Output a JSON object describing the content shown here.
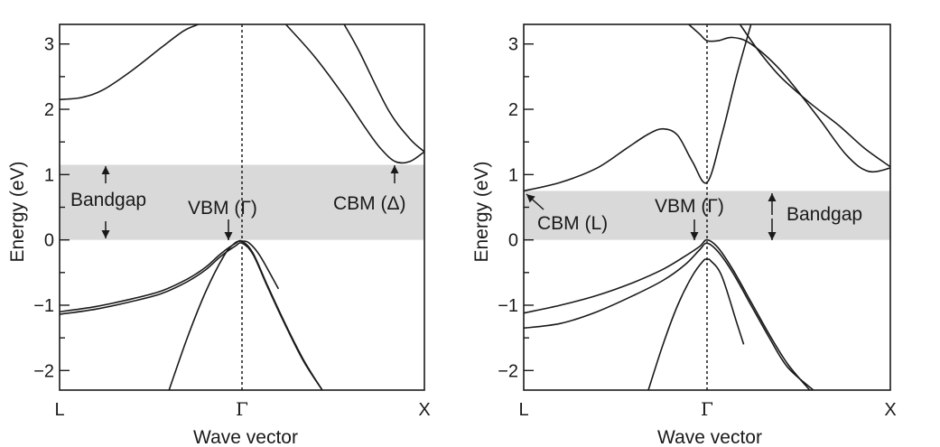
{
  "chart_data": [
    {
      "type": "line",
      "title": "",
      "xlabel": "Wave vector",
      "ylabel": "Energy (eV)",
      "xlim": [
        0,
        1
      ],
      "ylim": [
        -2.3,
        3.3
      ],
      "yticks": [
        -2,
        -1,
        0,
        1,
        2,
        3
      ],
      "ytick_labels": [
        "−2",
        "−1",
        "0",
        "1",
        "2",
        "3"
      ],
      "xticks": [
        0,
        0.5,
        1
      ],
      "xtick_labels": [
        "L",
        "Γ",
        "X"
      ],
      "bandgap_region": [
        0,
        1.15
      ],
      "gamma_line_x": 0.5,
      "series": [
        {
          "x": [
            0,
            0.06,
            0.12,
            0.2,
            0.28,
            0.34,
            0.38,
            0.42
          ],
          "y": [
            2.15,
            2.18,
            2.3,
            2.6,
            2.95,
            3.2,
            3.3,
            3.4
          ]
        },
        {
          "x": [
            0.62,
            0.7,
            0.78,
            0.84,
            0.88,
            0.92,
            0.96,
            1.0
          ],
          "y": [
            3.3,
            2.8,
            2.2,
            1.7,
            1.4,
            1.2,
            1.2,
            1.35
          ]
        },
        {
          "x": [
            0.78,
            0.82,
            0.9,
            0.96,
            1.0
          ],
          "y": [
            3.3,
            2.9,
            2.0,
            1.55,
            1.35
          ]
        },
        {
          "x": [
            0,
            0.1,
            0.2,
            0.28,
            0.35,
            0.4,
            0.44,
            0.48,
            0.5,
            0.53,
            0.57,
            0.62,
            0.67,
            0.72
          ],
          "y": [
            -1.1,
            -1.02,
            -0.9,
            -0.78,
            -0.6,
            -0.42,
            -0.22,
            -0.06,
            -0.02,
            -0.2,
            -0.7,
            -1.3,
            -1.85,
            -2.3
          ]
        },
        {
          "x": [
            0,
            0.1,
            0.2,
            0.28,
            0.35,
            0.4,
            0.44,
            0.48,
            0.5,
            0.53,
            0.57,
            0.62,
            0.67,
            0.72
          ],
          "y": [
            -1.14,
            -1.06,
            -0.94,
            -0.82,
            -0.64,
            -0.46,
            -0.26,
            -0.1,
            -0.05,
            -0.22,
            -0.72,
            -1.32,
            -1.87,
            -2.3
          ]
        },
        {
          "x": [
            0.3,
            0.35,
            0.4,
            0.45,
            0.48,
            0.5,
            0.52,
            0.55,
            0.6
          ],
          "y": [
            -2.3,
            -1.5,
            -0.8,
            -0.25,
            -0.05,
            -0.02,
            -0.05,
            -0.25,
            -0.75
          ]
        }
      ],
      "annotations": [
        {
          "text": "Bandgap"
        },
        {
          "text": "VBM (Γ)"
        },
        {
          "text": "CBM (Δ)"
        }
      ]
    },
    {
      "type": "line",
      "title": "",
      "xlabel": "Wave vector",
      "ylabel": "Energy (eV)",
      "xlim": [
        0,
        1
      ],
      "ylim": [
        -2.3,
        3.3
      ],
      "yticks": [
        -2,
        -1,
        0,
        1,
        2,
        3
      ],
      "ytick_labels": [
        "−2",
        "−1",
        "0",
        "1",
        "2",
        "3"
      ],
      "xticks": [
        0,
        0.5,
        1
      ],
      "xtick_labels": [
        "L",
        "Γ",
        "X"
      ],
      "bandgap_region": [
        0,
        0.75
      ],
      "gamma_line_x": 0.5,
      "series": [
        {
          "x": [
            0,
            0.1,
            0.2,
            0.28,
            0.34,
            0.38,
            0.42,
            0.46,
            0.5,
            0.54,
            0.58,
            0.62
          ],
          "y": [
            0.75,
            0.88,
            1.1,
            1.4,
            1.62,
            1.7,
            1.6,
            1.2,
            0.88,
            1.6,
            2.5,
            3.3
          ]
        },
        {
          "x": [
            0.45,
            0.48,
            0.5,
            0.53,
            0.57,
            0.62,
            0.7,
            0.8,
            0.88,
            0.94,
            1.0
          ],
          "y": [
            3.3,
            3.15,
            3.05,
            3.05,
            3.1,
            3.0,
            2.6,
            1.9,
            1.3,
            1.05,
            1.1
          ]
        },
        {
          "x": [
            0.59,
            0.64,
            0.7,
            0.78,
            0.86,
            0.93,
            1.0
          ],
          "y": [
            3.3,
            2.9,
            2.5,
            2.1,
            1.75,
            1.4,
            1.12
          ]
        },
        {
          "x": [
            0,
            0.1,
            0.2,
            0.3,
            0.38,
            0.44,
            0.48,
            0.5,
            0.53,
            0.57,
            0.62,
            0.67,
            0.72,
            0.78
          ],
          "y": [
            -1.12,
            -1.0,
            -0.85,
            -0.65,
            -0.45,
            -0.25,
            -0.1,
            0.0,
            -0.12,
            -0.45,
            -0.95,
            -1.45,
            -1.9,
            -2.3
          ]
        },
        {
          "x": [
            0,
            0.1,
            0.2,
            0.3,
            0.38,
            0.44,
            0.48,
            0.5,
            0.53,
            0.57,
            0.62,
            0.67,
            0.72,
            0.79
          ],
          "y": [
            -1.35,
            -1.28,
            -1.1,
            -0.85,
            -0.62,
            -0.38,
            -0.15,
            -0.05,
            -0.18,
            -0.5,
            -1.0,
            -1.5,
            -1.95,
            -2.3
          ]
        },
        {
          "x": [
            0.34,
            0.38,
            0.42,
            0.46,
            0.49,
            0.5,
            0.51,
            0.54,
            0.58,
            0.6
          ],
          "y": [
            -2.3,
            -1.6,
            -1.0,
            -0.55,
            -0.32,
            -0.3,
            -0.32,
            -0.55,
            -1.25,
            -1.6
          ]
        }
      ],
      "annotations": [
        {
          "text": "VBM (Γ)"
        },
        {
          "text": "CBM (L)"
        },
        {
          "text": "Bandgap"
        }
      ]
    }
  ]
}
